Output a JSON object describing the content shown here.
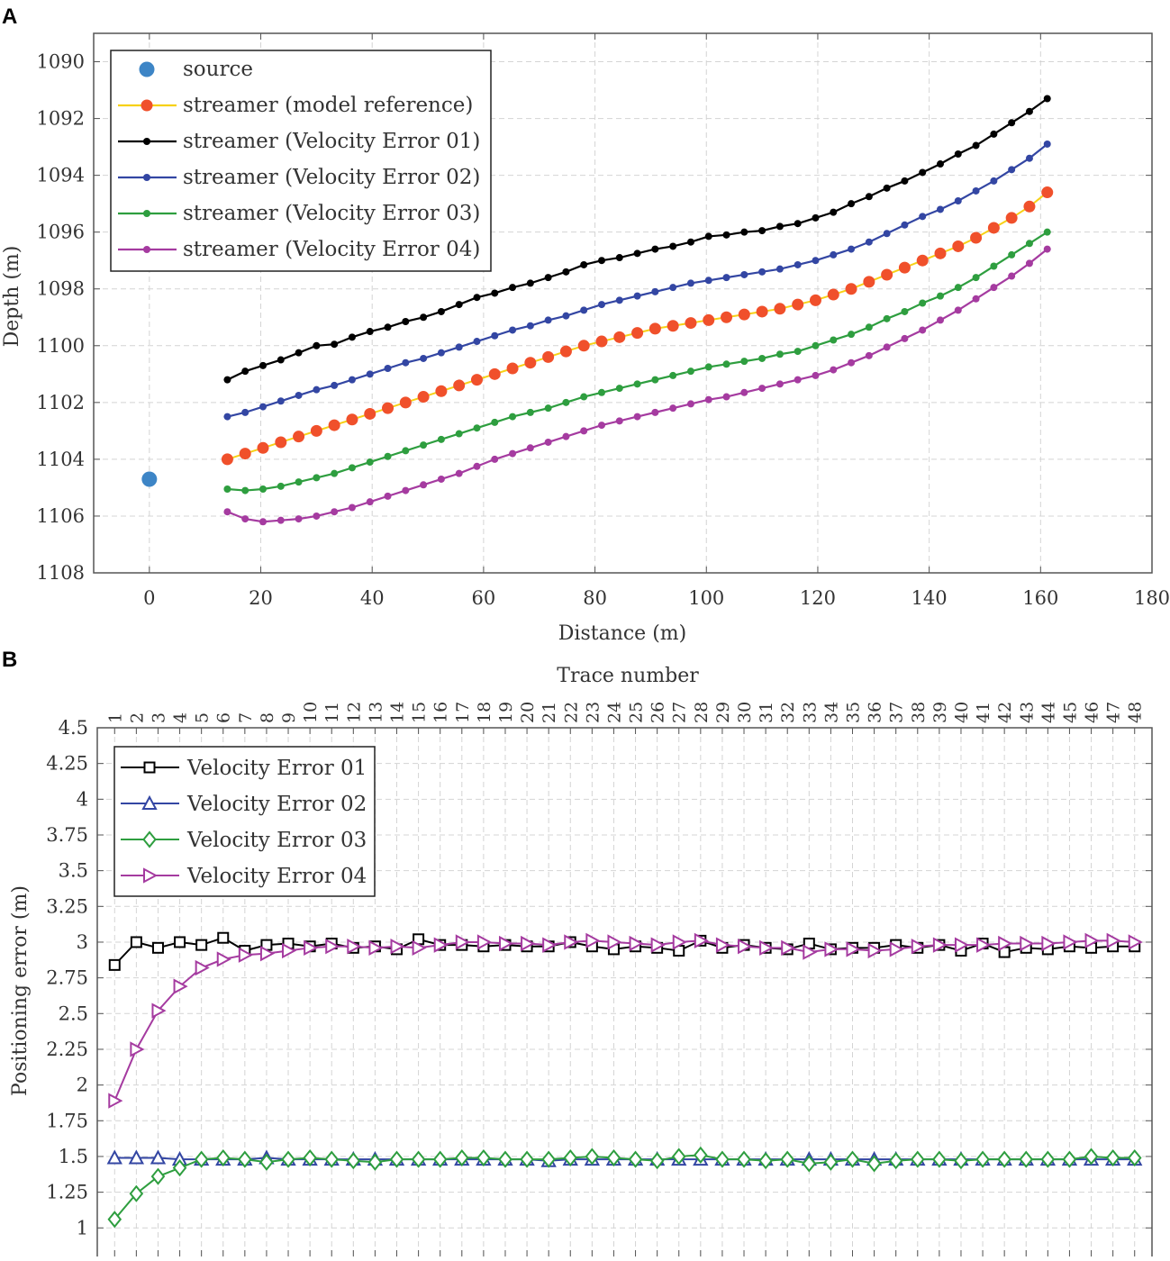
{
  "colors": {
    "source": "#3D85C6",
    "reference_line": "#F7D117",
    "reference_marker": "#F0502B",
    "ve01": "#000000",
    "ve02": "#3346A3",
    "ve03": "#2E9E3F",
    "ve04": "#A53BA0",
    "grid": "#d4d4d4",
    "axis": "#555555"
  },
  "chart_data": [
    {
      "panel_label": "A",
      "type": "line",
      "xlabel": "Distance (m)",
      "ylabel": "Depth (m)",
      "xlim": [
        -10,
        180
      ],
      "ylim": [
        1108,
        1089
      ],
      "y_reversed": true,
      "xticks": [
        0,
        20,
        40,
        60,
        80,
        100,
        120,
        140,
        160,
        180
      ],
      "yticks": [
        1090,
        1092,
        1094,
        1096,
        1098,
        1100,
        1102,
        1104,
        1106,
        1108
      ],
      "grid": true,
      "legend_position": "top-left",
      "source": {
        "name": "source",
        "x": 0,
        "y": 1104.7
      },
      "x": [
        14.0,
        17.2,
        20.4,
        23.6,
        26.8,
        30.0,
        33.2,
        36.4,
        39.6,
        42.8,
        46.0,
        49.2,
        52.4,
        55.6,
        58.8,
        62.0,
        65.2,
        68.4,
        71.6,
        74.8,
        78.0,
        81.2,
        84.4,
        87.6,
        90.8,
        94.0,
        97.2,
        100.4,
        103.6,
        106.8,
        110.0,
        113.2,
        116.4,
        119.6,
        122.8,
        126.0,
        129.2,
        132.4,
        135.6,
        138.8,
        142.0,
        145.2,
        148.4,
        151.6,
        154.8,
        158.0,
        161.2
      ],
      "series": [
        {
          "name": "streamer (model reference)",
          "color_key": "reference",
          "values": [
            1104.0,
            1103.8,
            1103.6,
            1103.4,
            1103.2,
            1103.0,
            1102.8,
            1102.6,
            1102.4,
            1102.2,
            1102.0,
            1101.8,
            1101.6,
            1101.4,
            1101.2,
            1101.0,
            1100.8,
            1100.6,
            1100.4,
            1100.2,
            1100.0,
            1099.85,
            1099.7,
            1099.55,
            1099.4,
            1099.3,
            1099.2,
            1099.1,
            1099.0,
            1098.9,
            1098.8,
            1098.7,
            1098.55,
            1098.4,
            1098.2,
            1098.0,
            1097.75,
            1097.5,
            1097.25,
            1097.0,
            1096.75,
            1096.5,
            1096.2,
            1095.85,
            1095.5,
            1095.1,
            1094.6
          ]
        },
        {
          "name": "streamer (Velocity Error 01)",
          "color_key": "ve01",
          "values": [
            1101.2,
            1100.9,
            1100.7,
            1100.5,
            1100.25,
            1100.0,
            1099.95,
            1099.7,
            1099.5,
            1099.35,
            1099.15,
            1099.0,
            1098.8,
            1098.55,
            1098.3,
            1098.15,
            1097.95,
            1097.8,
            1097.6,
            1097.4,
            1097.15,
            1097.0,
            1096.9,
            1096.75,
            1096.6,
            1096.5,
            1096.35,
            1096.15,
            1096.1,
            1096.0,
            1095.95,
            1095.8,
            1095.7,
            1095.5,
            1095.3,
            1095.0,
            1094.75,
            1094.45,
            1094.2,
            1093.9,
            1093.6,
            1093.25,
            1092.95,
            1092.55,
            1092.15,
            1091.75,
            1091.3
          ]
        },
        {
          "name": "streamer (Velocity Error 02)",
          "color_key": "ve02",
          "values": [
            1102.5,
            1102.35,
            1102.15,
            1101.95,
            1101.75,
            1101.55,
            1101.4,
            1101.2,
            1101.0,
            1100.8,
            1100.6,
            1100.45,
            1100.25,
            1100.05,
            1099.85,
            1099.65,
            1099.45,
            1099.3,
            1099.1,
            1098.95,
            1098.75,
            1098.55,
            1098.4,
            1098.25,
            1098.1,
            1097.95,
            1097.8,
            1097.7,
            1097.6,
            1097.5,
            1097.4,
            1097.3,
            1097.15,
            1097.0,
            1096.8,
            1096.6,
            1096.35,
            1096.05,
            1095.75,
            1095.45,
            1095.2,
            1094.9,
            1094.55,
            1094.2,
            1093.8,
            1093.4,
            1092.9
          ]
        },
        {
          "name": "streamer (Velocity Error 03)",
          "color_key": "ve03",
          "values": [
            1105.05,
            1105.1,
            1105.05,
            1104.95,
            1104.8,
            1104.65,
            1104.5,
            1104.3,
            1104.1,
            1103.9,
            1103.7,
            1103.5,
            1103.3,
            1103.1,
            1102.9,
            1102.7,
            1102.5,
            1102.35,
            1102.2,
            1102.0,
            1101.8,
            1101.65,
            1101.5,
            1101.35,
            1101.2,
            1101.05,
            1100.9,
            1100.75,
            1100.65,
            1100.55,
            1100.45,
            1100.3,
            1100.2,
            1100.0,
            1099.8,
            1099.6,
            1099.35,
            1099.05,
            1098.8,
            1098.5,
            1098.25,
            1097.95,
            1097.6,
            1097.2,
            1096.8,
            1096.4,
            1096.0
          ]
        },
        {
          "name": "streamer (Velocity Error 04)",
          "color_key": "ve04",
          "values": [
            1105.85,
            1106.1,
            1106.2,
            1106.15,
            1106.1,
            1106.0,
            1105.85,
            1105.7,
            1105.5,
            1105.3,
            1105.1,
            1104.9,
            1104.7,
            1104.5,
            1104.25,
            1104.0,
            1103.8,
            1103.6,
            1103.4,
            1103.2,
            1103.0,
            1102.8,
            1102.65,
            1102.5,
            1102.35,
            1102.2,
            1102.05,
            1101.9,
            1101.8,
            1101.65,
            1101.5,
            1101.35,
            1101.2,
            1101.05,
            1100.85,
            1100.6,
            1100.35,
            1100.05,
            1099.75,
            1099.45,
            1099.1,
            1098.75,
            1098.35,
            1097.95,
            1097.55,
            1097.1,
            1096.6
          ]
        }
      ]
    },
    {
      "panel_label": "B",
      "type": "line",
      "xlabel": "",
      "ylabel": "Positioning error (m)",
      "x2label": "Trace number",
      "xlim": [
        0.2,
        48.8
      ],
      "ylim": [
        0.8,
        4.5
      ],
      "yticks": [
        1,
        1.25,
        1.5,
        1.75,
        2,
        2.25,
        2.5,
        2.75,
        3,
        3.25,
        3.5,
        3.75,
        4,
        4.25,
        4.5
      ],
      "ytick_labels": [
        "1",
        "1.25",
        "1.5",
        "1.75",
        "2",
        "2.25",
        "2.5",
        "2.75",
        "3",
        "3.25",
        "3.5",
        "3.75",
        "4",
        "4.25",
        "4.5"
      ],
      "x": [
        1,
        2,
        3,
        4,
        5,
        6,
        7,
        8,
        9,
        10,
        11,
        12,
        13,
        14,
        15,
        16,
        17,
        18,
        19,
        20,
        21,
        22,
        23,
        24,
        25,
        26,
        27,
        28,
        29,
        30,
        31,
        32,
        33,
        34,
        35,
        36,
        37,
        38,
        39,
        40,
        41,
        42,
        43,
        44,
        45,
        46,
        47,
        48
      ],
      "x_tick_labels": [
        "1",
        "2",
        "3",
        "4",
        "5",
        "6",
        "7",
        "8",
        "9",
        "10",
        "11",
        "12",
        "13",
        "14",
        "15",
        "16",
        "17",
        "18",
        "19",
        "20",
        "21",
        "22",
        "23",
        "24",
        "25",
        "26",
        "27",
        "28",
        "29",
        "30",
        "31",
        "32",
        "33",
        "34",
        "35",
        "36",
        "37",
        "38",
        "39",
        "40",
        "41",
        "42",
        "43",
        "44",
        "45",
        "46",
        "47",
        "48"
      ],
      "grid": true,
      "legend_position": "top-left",
      "series": [
        {
          "name": "Velocity Error 01",
          "color_key": "ve01",
          "marker": "square",
          "values": [
            2.84,
            3.0,
            2.96,
            3.0,
            2.98,
            3.03,
            2.94,
            2.98,
            2.99,
            2.97,
            2.99,
            2.96,
            2.97,
            2.95,
            3.02,
            2.98,
            2.98,
            2.97,
            2.98,
            2.97,
            2.97,
            3.0,
            2.97,
            2.95,
            2.97,
            2.96,
            2.94,
            3.01,
            2.96,
            2.98,
            2.96,
            2.95,
            2.99,
            2.95,
            2.96,
            2.96,
            2.98,
            2.96,
            2.98,
            2.94,
            2.99,
            2.93,
            2.96,
            2.95,
            2.97,
            2.96,
            2.97,
            2.97
          ]
        },
        {
          "name": "Velocity Error 02",
          "color_key": "ve02",
          "marker": "triangle-up",
          "values": [
            1.49,
            1.49,
            1.49,
            1.48,
            1.48,
            1.48,
            1.48,
            1.49,
            1.48,
            1.48,
            1.48,
            1.48,
            1.48,
            1.48,
            1.48,
            1.48,
            1.48,
            1.48,
            1.48,
            1.48,
            1.47,
            1.48,
            1.48,
            1.48,
            1.48,
            1.48,
            1.48,
            1.48,
            1.48,
            1.48,
            1.48,
            1.48,
            1.48,
            1.48,
            1.48,
            1.48,
            1.48,
            1.48,
            1.48,
            1.48,
            1.48,
            1.48,
            1.48,
            1.48,
            1.48,
            1.48,
            1.48,
            1.48
          ]
        },
        {
          "name": "Velocity Error 03",
          "color_key": "ve03",
          "marker": "diamond",
          "values": [
            1.06,
            1.24,
            1.36,
            1.42,
            1.48,
            1.49,
            1.48,
            1.46,
            1.48,
            1.49,
            1.48,
            1.47,
            1.46,
            1.48,
            1.48,
            1.48,
            1.49,
            1.49,
            1.48,
            1.48,
            1.48,
            1.49,
            1.5,
            1.49,
            1.48,
            1.47,
            1.5,
            1.51,
            1.48,
            1.48,
            1.47,
            1.48,
            1.45,
            1.46,
            1.48,
            1.45,
            1.47,
            1.48,
            1.48,
            1.47,
            1.48,
            1.48,
            1.48,
            1.48,
            1.48,
            1.5,
            1.49,
            1.49
          ]
        },
        {
          "name": "Velocity Error 04",
          "color_key": "ve04",
          "marker": "triangle-right",
          "values": [
            1.89,
            2.25,
            2.52,
            2.69,
            2.82,
            2.88,
            2.91,
            2.92,
            2.94,
            2.96,
            2.97,
            2.97,
            2.96,
            2.97,
            2.96,
            2.98,
            3.0,
            3.0,
            2.99,
            2.99,
            2.98,
            3.0,
            3.01,
            3.0,
            2.99,
            2.98,
            3.0,
            3.01,
            2.98,
            2.97,
            2.96,
            2.96,
            2.93,
            2.95,
            2.95,
            2.94,
            2.95,
            2.97,
            2.98,
            2.98,
            2.98,
            2.99,
            2.99,
            2.99,
            3.0,
            3.01,
            3.01,
            3.0
          ]
        }
      ]
    }
  ]
}
